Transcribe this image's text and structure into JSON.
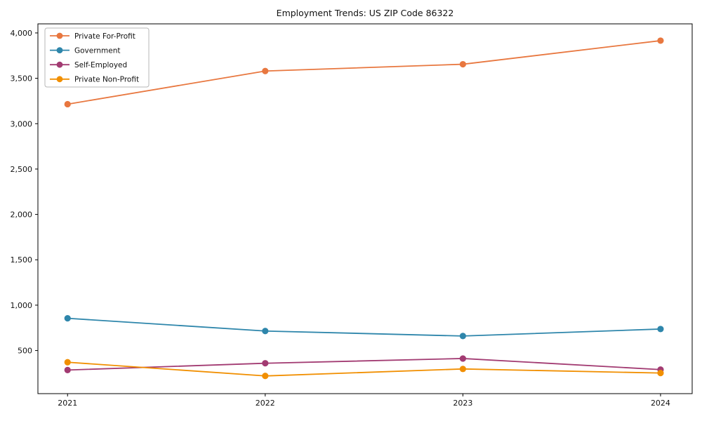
{
  "title": "Employment Trends: US ZIP Code 86322",
  "chart_data": {
    "type": "line",
    "title": "Employment Trends: US ZIP Code 86322",
    "x": [
      2021,
      2022,
      2023,
      2024
    ],
    "x_tick_labels": [
      "2021",
      "2022",
      "2023",
      "2024"
    ],
    "y_ticks": [
      500,
      1000,
      1500,
      2000,
      2500,
      3000,
      3500,
      4000
    ],
    "y_tick_labels": [
      "500",
      "1,000",
      "1,500",
      "2,000",
      "2,500",
      "3,000",
      "3,500",
      "4,000"
    ],
    "xlim": [
      2020.85,
      2024.16
    ],
    "ylim": [
      25,
      4100
    ],
    "grid": false,
    "legend_position": "upper left",
    "marker": "circle",
    "series": [
      {
        "name": "Private For-Profit",
        "color": "#E8773F",
        "values": [
          3215,
          3580,
          3655,
          3915
        ]
      },
      {
        "name": "Government",
        "color": "#2E86AB",
        "values": [
          855,
          715,
          660,
          737
        ]
      },
      {
        "name": "Self-Employed",
        "color": "#A23B72",
        "values": [
          285,
          360,
          412,
          290
        ]
      },
      {
        "name": "Private Non-Profit",
        "color": "#F18F01",
        "values": [
          371,
          220,
          297,
          252
        ]
      }
    ],
    "xlabel": "",
    "ylabel": ""
  }
}
